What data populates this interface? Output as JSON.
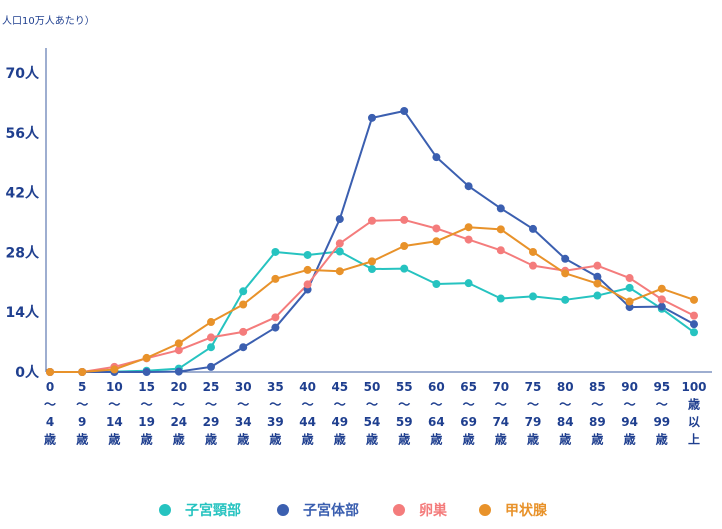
{
  "chart_data": {
    "type": "line",
    "unit_label": "人口10万人あたり）",
    "y_ticks": [
      "0人",
      "14人",
      "28人",
      "42人",
      "56人",
      "70人"
    ],
    "ylim": [
      0,
      70
    ],
    "grid": false,
    "legend_position": "bottom",
    "categories": [
      [
        "0",
        "～",
        "4",
        "歳"
      ],
      [
        "5",
        "～",
        "9",
        "歳"
      ],
      [
        "10",
        "～",
        "14",
        "歳"
      ],
      [
        "15",
        "～",
        "19",
        "歳"
      ],
      [
        "20",
        "～",
        "24",
        "歳"
      ],
      [
        "25",
        "～",
        "29",
        "歳"
      ],
      [
        "30",
        "～",
        "34",
        "歳"
      ],
      [
        "35",
        "～",
        "39",
        "歳"
      ],
      [
        "40",
        "～",
        "44",
        "歳"
      ],
      [
        "45",
        "～",
        "49",
        "歳"
      ],
      [
        "50",
        "～",
        "54",
        "歳"
      ],
      [
        "55",
        "～",
        "59",
        "歳"
      ],
      [
        "60",
        "～",
        "64",
        "歳"
      ],
      [
        "65",
        "～",
        "69",
        "歳"
      ],
      [
        "70",
        "～",
        "74",
        "歳"
      ],
      [
        "75",
        "～",
        "79",
        "歳"
      ],
      [
        "80",
        "～",
        "84",
        "歳"
      ],
      [
        "85",
        "～",
        "89",
        "歳"
      ],
      [
        "90",
        "～",
        "94",
        "歳"
      ],
      [
        "95",
        "～",
        "99",
        "歳"
      ],
      [
        "100",
        "歳",
        "以",
        "上"
      ]
    ],
    "series": [
      {
        "name": "子宮頸部",
        "color": "#26c3c0",
        "values": [
          0,
          0,
          0.1,
          0.3,
          0.8,
          5.8,
          18.9,
          28.1,
          27.4,
          28.2,
          24.1,
          24.2,
          20.6,
          20.8,
          17.2,
          17.7,
          16.9,
          17.9,
          19.7,
          14.8,
          9.3
        ]
      },
      {
        "name": "子宮体部",
        "color": "#3b5fb0",
        "values": [
          0,
          0,
          0,
          0,
          0.1,
          1.2,
          5.8,
          10.4,
          19.3,
          35.8,
          59.5,
          61.1,
          50.3,
          43.5,
          38.3,
          33.5,
          26.5,
          22.3,
          15.2,
          15.3,
          11.2
        ]
      },
      {
        "name": "卵巣",
        "color": "#f47c7c",
        "values": [
          0,
          0,
          1.2,
          3.2,
          5.1,
          8.1,
          9.4,
          12.8,
          20.5,
          30.1,
          35.4,
          35.6,
          33.6,
          31.0,
          28.5,
          24.9,
          23.7,
          24.9,
          22.0,
          17.0,
          13.2
        ]
      },
      {
        "name": "甲状腺",
        "color": "#e8922a",
        "values": [
          0,
          0,
          0.6,
          3.3,
          6.7,
          11.7,
          15.8,
          21.8,
          23.9,
          23.6,
          25.9,
          29.5,
          30.6,
          33.9,
          33.4,
          28.1,
          23.1,
          20.7,
          16.5,
          19.5,
          16.9
        ]
      }
    ]
  }
}
